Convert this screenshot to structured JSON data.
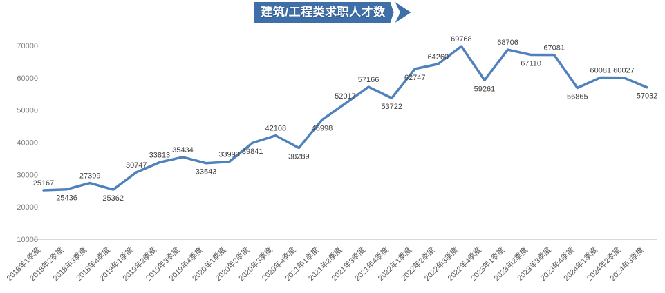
{
  "title": {
    "text": "建筑/工程类求职人才数"
  },
  "colors": {
    "banner_bg": "#3E6FA9",
    "line": "#4F81BD",
    "data_label": "#404040",
    "y_tick": "#7F7F7F",
    "x_tick": "#595959",
    "axis_line": "#D9D9D9"
  },
  "chart_data": {
    "type": "line",
    "title": "建筑/工程类求职人才数",
    "categories": [
      "2018年1季度",
      "2018年2季度",
      "2018年3季度",
      "2018年4季度",
      "2019年1季度",
      "2019年2季度",
      "2019年3季度",
      "2019年4季度",
      "2020年1季度",
      "2020年2季度",
      "2020年3季度",
      "2020年4季度",
      "2021年1季度",
      "2021年2季度",
      "2021年3季度",
      "2021年4季度",
      "2022年1季度",
      "2022年2季度",
      "2022年3季度",
      "2022年4季度",
      "2023年1季度",
      "2023年2季度",
      "2023年3季度",
      "2023年4季度",
      "2024年1季度",
      "2024年2季度",
      "2024年3季度"
    ],
    "series": [
      {
        "name": "建筑/工程类求职人才数",
        "values": [
          25167,
          25436,
          27399,
          25362,
          30747,
          33813,
          35434,
          33543,
          33993,
          39841,
          42108,
          38289,
          46998,
          52017,
          57166,
          53722,
          62747,
          64260,
          69768,
          59261,
          68706,
          67110,
          67081,
          56865,
          60081,
          60027,
          57032
        ]
      }
    ],
    "xlabel": "",
    "ylabel": "",
    "ylim": [
      10000,
      70000
    ],
    "y_ticks": [
      10000,
      20000,
      30000,
      40000,
      50000,
      60000,
      70000
    ],
    "grid": false,
    "legend": "none",
    "data_labels_visible": true,
    "label_positions": [
      "above",
      "below",
      "above",
      "below",
      "above",
      "above",
      "above",
      "below",
      "above",
      "below",
      "above",
      "below",
      "below",
      "above",
      "above",
      "below",
      "below",
      "above",
      "above",
      "below",
      "above",
      "below",
      "above",
      "below",
      "above",
      "above",
      "below"
    ]
  }
}
